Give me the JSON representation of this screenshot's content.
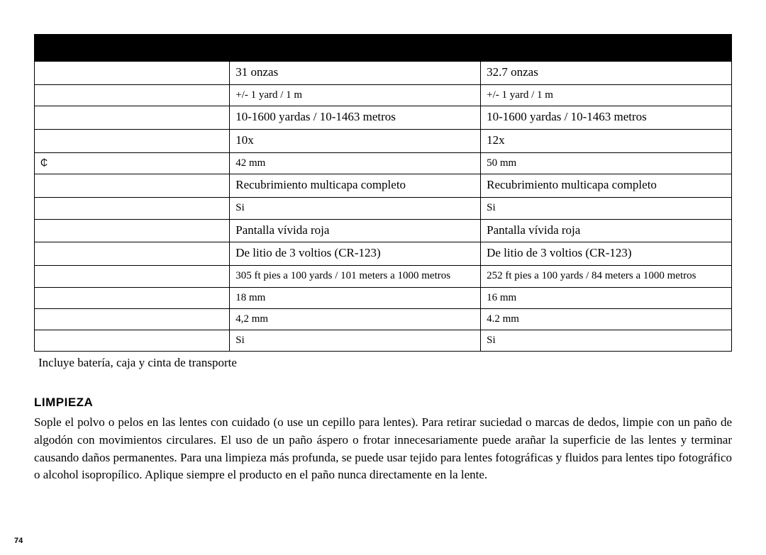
{
  "table": {
    "header": [
      "",
      "",
      ""
    ],
    "rows": [
      {
        "c0": "",
        "c1": "31 onzas",
        "c2": "32.7 onzas",
        "sm": false
      },
      {
        "c0": "",
        "c1": "+/- 1 yard / 1 m",
        "c2": "+/- 1 yard / 1 m",
        "sm": true
      },
      {
        "c0": "",
        "c1": "10-1600 yardas / 10-1463 metros",
        "c2": "10-1600 yardas / 10-1463 metros",
        "sm": false
      },
      {
        "c0": "",
        "c1": "10x",
        "c2": "12x",
        "sm": false
      },
      {
        "c0": "₵",
        "c1": "42 mm",
        "c2": "50 mm",
        "sm": true
      },
      {
        "c0": "",
        "c1": "Recubrimiento multicapa completo",
        "c2": "Recubrimiento multicapa completo",
        "sm": false
      },
      {
        "c0": "",
        "c1": "Si",
        "c2": "Si",
        "sm": true
      },
      {
        "c0": "",
        "c1": "Pantalla vívida roja",
        "c2": "Pantalla vívida roja",
        "sm": false
      },
      {
        "c0": "",
        "c1": "De litio de 3 voltios (CR-123)",
        "c2": "De litio de 3 voltios (CR-123)",
        "sm": false
      },
      {
        "c0": "",
        "c1": "305 ft pies a 100 yards / 101 meters a 1000 metros",
        "c2": "252 ft pies a 100 yards / 84 meters a 1000 metros",
        "sm": true
      },
      {
        "c0": "",
        "c1": "18 mm",
        "c2": "16 mm",
        "sm": true
      },
      {
        "c0": "",
        "c1": "4,2 mm",
        "c2": "4.2 mm",
        "sm": true
      },
      {
        "c0": "",
        "c1": "Si",
        "c2": "Si",
        "sm": true
      }
    ]
  },
  "footnote": "Incluye batería, caja y cinta de transporte",
  "section_heading": "LIMPIEZA",
  "body_text": "Sople el polvo o pelos en las lentes con cuidado (o use un cepillo para lentes). Para retirar suciedad o marcas de dedos, limpie con un paño de algodón con movimientos circulares. El uso de un paño áspero o frotar innecesariamente puede arañar la superficie de las lentes y terminar causando daños permanentes. Para una limpieza más profunda, se puede usar tejido para lentes fotográficas y fluidos para lentes tipo fotográfico o alcohol isopropílico. Aplique siempre el producto en el paño nunca directamente en la lente.",
  "page_number": "74"
}
